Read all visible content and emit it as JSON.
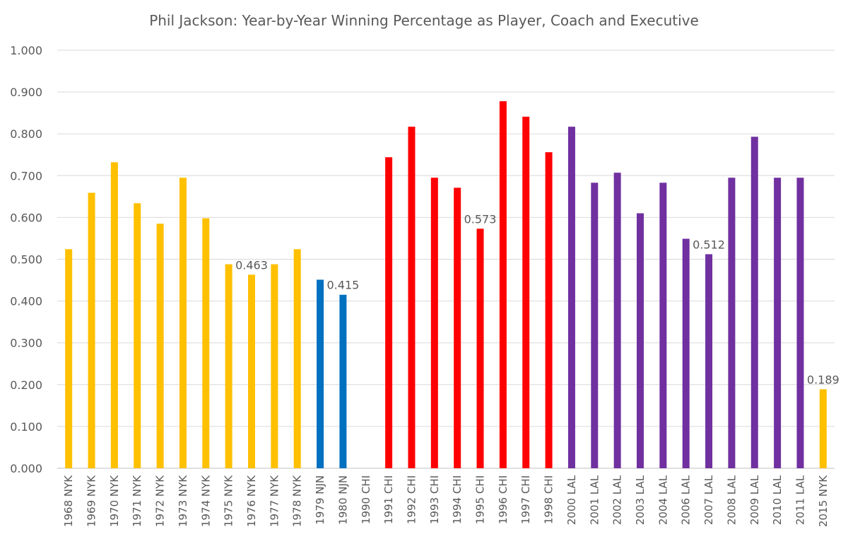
{
  "chart_data": {
    "type": "bar",
    "title": "Phil Jackson: Year-by-Year Winning Percentage as Player, Coach and Executive",
    "xlabel": "",
    "ylabel": "",
    "ylim": [
      0,
      1.0
    ],
    "ytick_step": 0.1,
    "yticks": [
      "0.000",
      "0.100",
      "0.200",
      "0.300",
      "0.400",
      "0.500",
      "0.600",
      "0.700",
      "0.800",
      "0.900",
      "1.000"
    ],
    "grid": true,
    "legend": "none",
    "colors": {
      "NYK": "#FFC000",
      "NJN": "#0070C0",
      "CHI": "#FF0000",
      "LAL": "#7030A0"
    },
    "categories": [
      "1968 NYK",
      "1969 NYK",
      "1970 NYK",
      "1971 NYK",
      "1972 NYK",
      "1973 NYK",
      "1974 NYK",
      "1975 NYK",
      "1976 NYK",
      "1977 NYK",
      "1978 NYK",
      "1979 NJN",
      "1980 NJN",
      "1990 CHI",
      "1991 CHI",
      "1992 CHI",
      "1993 CHI",
      "1994 CHI",
      "1995 CHI",
      "1996 CHI",
      "1997 CHI",
      "1998 CHI",
      "2000 LAL",
      "2001 LAL",
      "2002 LAL",
      "2003 LAL",
      "2004 LAL",
      "2006 LAL",
      "2007 LAL",
      "2008 LAL",
      "2009 LAL",
      "2010 LAL",
      "2011 LAL",
      "2015 NYK"
    ],
    "values": [
      0.524,
      0.659,
      0.732,
      0.634,
      0.585,
      0.695,
      0.598,
      0.488,
      0.463,
      0.488,
      0.524,
      0.451,
      0.415,
      null,
      0.744,
      0.817,
      0.695,
      0.671,
      0.573,
      0.878,
      0.841,
      0.756,
      0.817,
      0.683,
      0.707,
      0.61,
      0.683,
      0.549,
      0.512,
      0.695,
      0.793,
      0.695,
      0.695,
      0.189
    ],
    "data_labels": {
      "1976 NYK": "0.463",
      "1980 NJN": "0.415",
      "1995 CHI": "0.573",
      "2007 LAL": "0.512",
      "2015 NYK": "0.189"
    }
  }
}
